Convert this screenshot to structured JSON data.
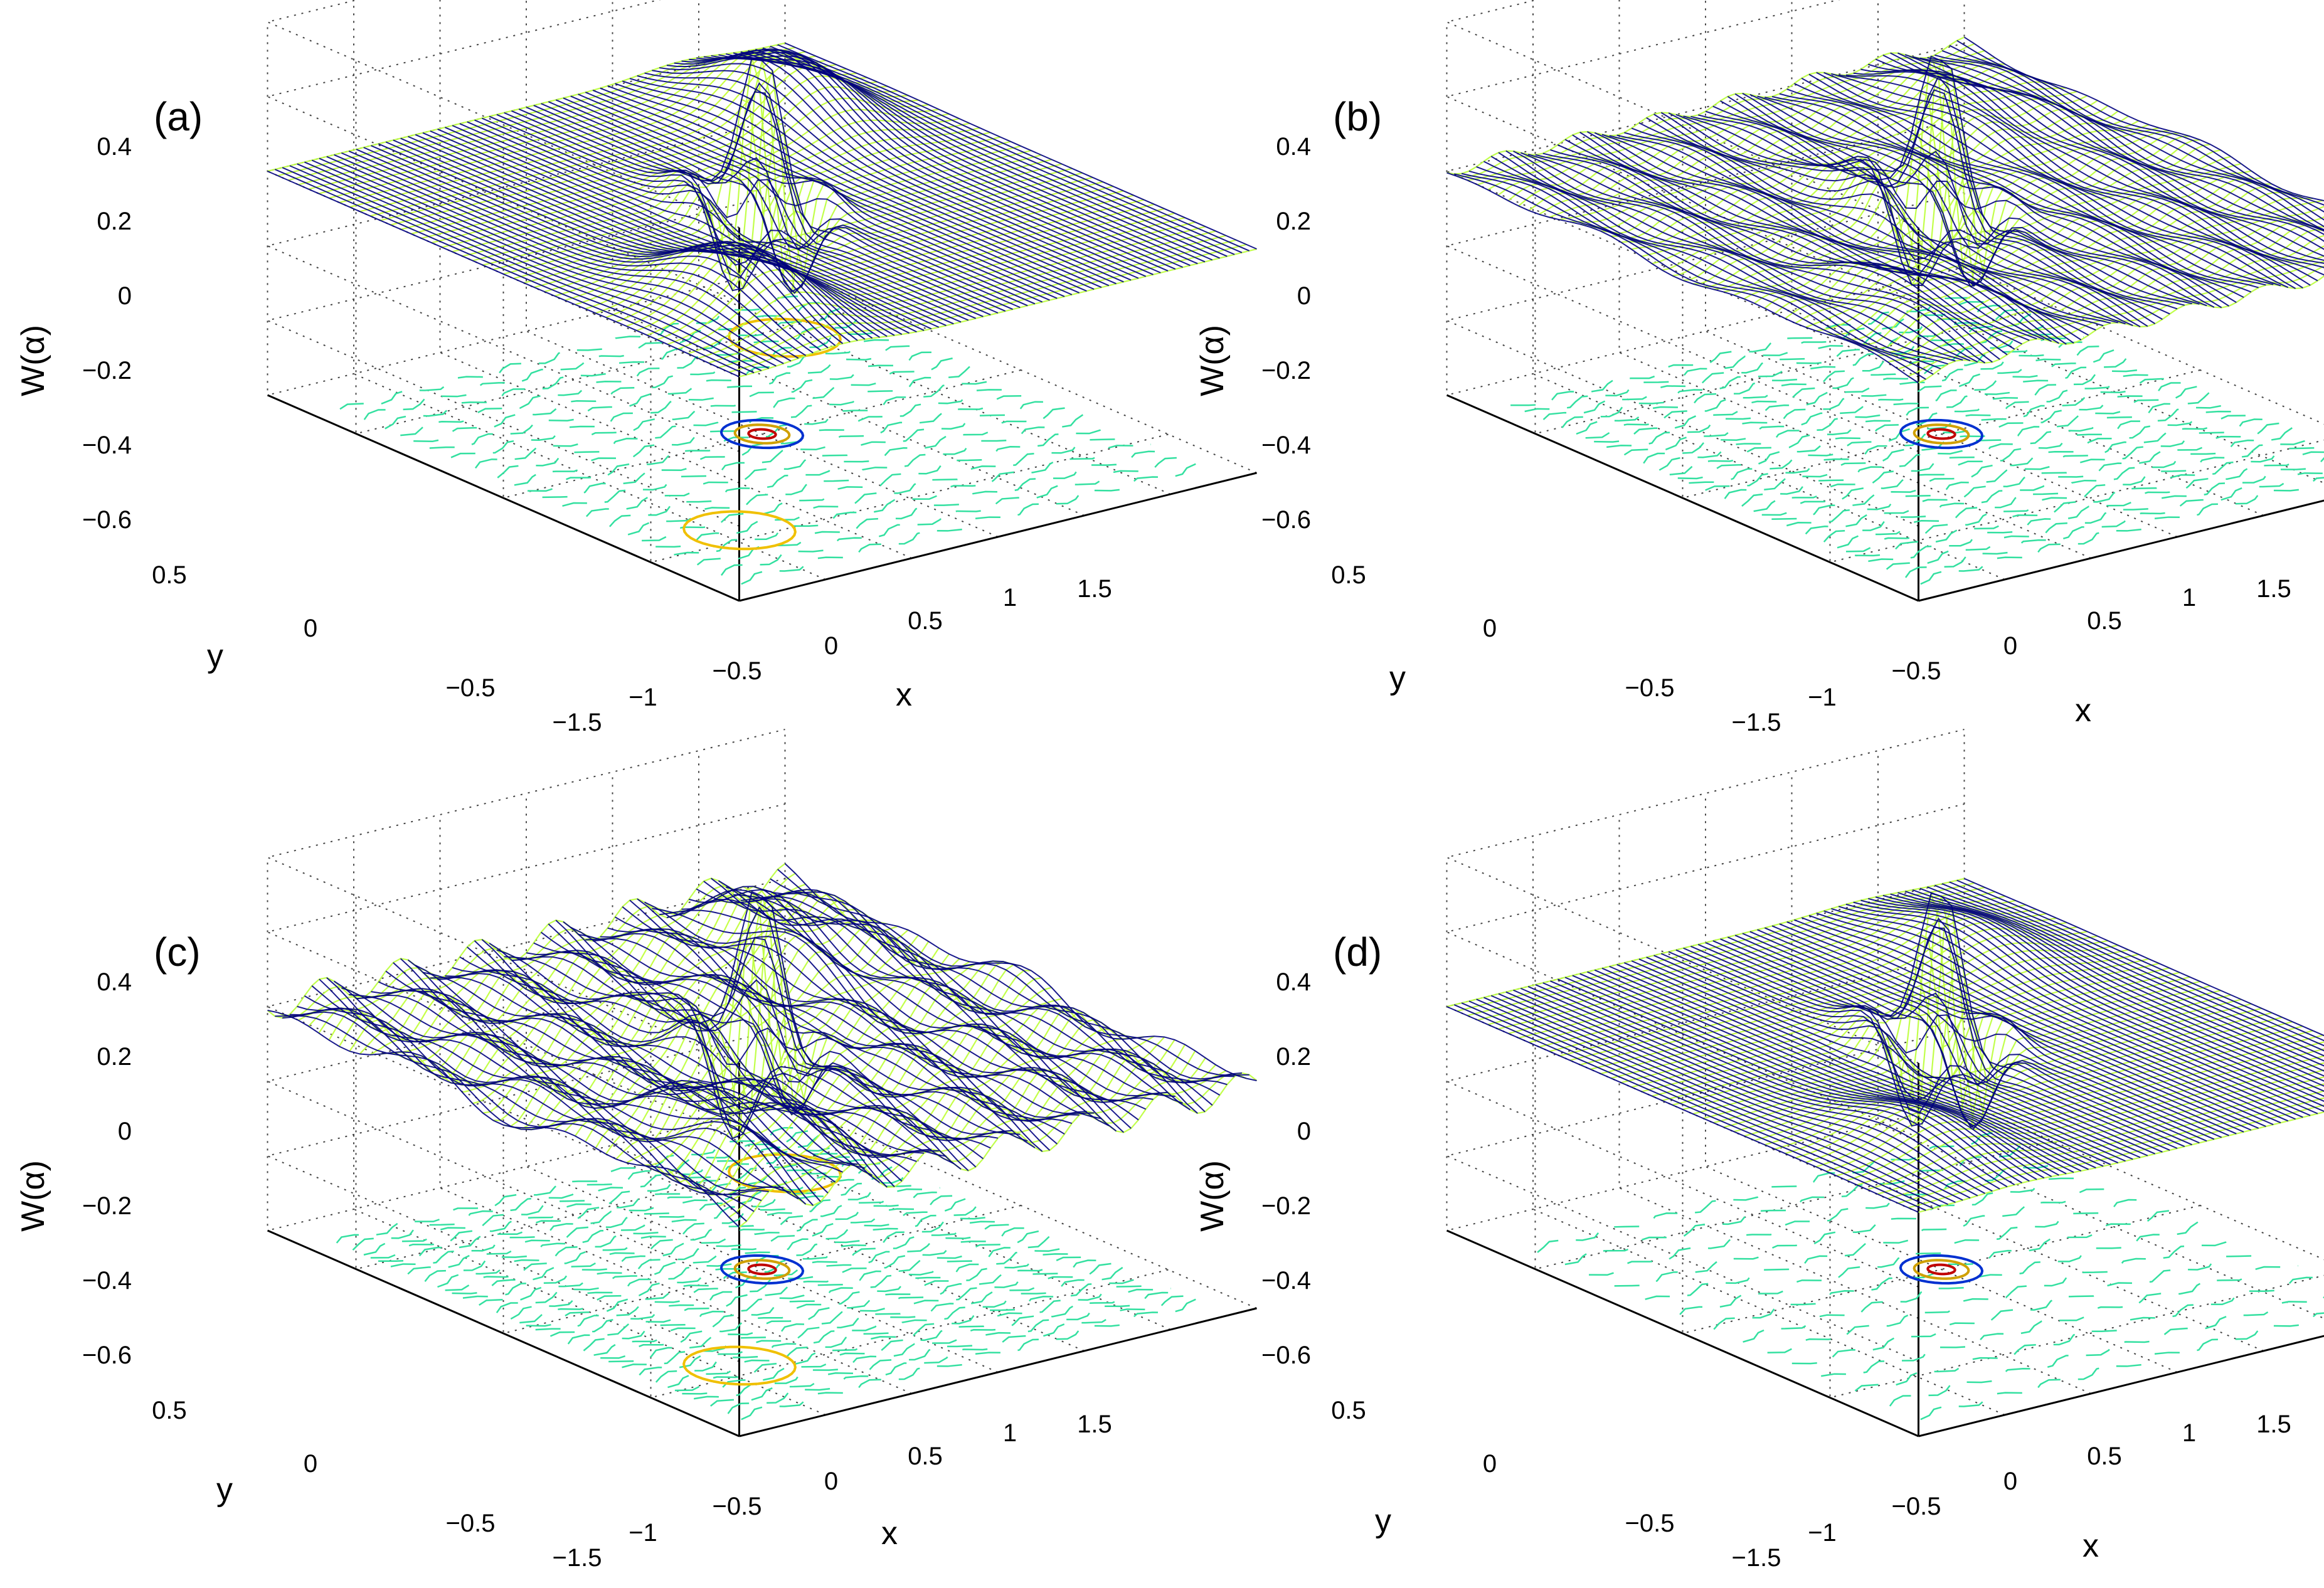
{
  "chart_data": [
    {
      "type": "surface",
      "panel_label": "(a)",
      "zlabel": "W(α)",
      "xlabel": "x",
      "ylabel": "y",
      "zticks": [
        "0.4",
        "0.2",
        "0",
        "−0.2",
        "−0.4",
        "−0.6"
      ],
      "xticks": [
        "−1.5",
        "−1",
        "−0.5",
        "0",
        "0.5",
        "1",
        "1.5"
      ],
      "yticks": [
        "0.5",
        "0",
        "−0.5"
      ],
      "zlim": [
        -0.6,
        0.4
      ],
      "xlim": [
        -1.5,
        1.5
      ],
      "ylim": [
        -0.8,
        0.8
      ],
      "features": {
        "side_peaks": 0.16,
        "central_peaks": [
          0.43,
          0.35,
          0.28,
          0.2
        ],
        "central_dip": -0.55,
        "ripple": 0.0
      },
      "contours": {
        "side_rings": true,
        "ripple_lines": 22
      }
    },
    {
      "type": "surface",
      "panel_label": "(b)",
      "zlabel": "W(α)",
      "xlabel": "x",
      "ylabel": "y",
      "zticks": [
        "0.4",
        "0.2",
        "0",
        "−0.2",
        "−0.4",
        "−0.6"
      ],
      "xticks": [
        "−1.5",
        "−1",
        "−0.5",
        "0",
        "0.5",
        "1",
        "1.5"
      ],
      "yticks": [
        "0.5",
        "0",
        "−0.5"
      ],
      "zlim": [
        -0.6,
        0.4
      ],
      "xlim": [
        -1.5,
        1.5
      ],
      "ylim": [
        -0.8,
        0.8
      ],
      "features": {
        "side_peaks": 0.07,
        "central_peaks": [
          0.43,
          0.35,
          0.32,
          0.28,
          0.25,
          0.22
        ],
        "central_dip": -0.52,
        "ripple": 0.02
      },
      "contours": {
        "side_rings": false,
        "ripple_lines": 30
      }
    },
    {
      "type": "surface",
      "panel_label": "(c)",
      "zlabel": "W(α)",
      "xlabel": "x",
      "ylabel": "y",
      "zticks": [
        "0.4",
        "0.2",
        "0",
        "−0.2",
        "−0.4",
        "−0.6"
      ],
      "xticks": [
        "−1.5",
        "−1",
        "−0.5",
        "0",
        "0.5",
        "1",
        "1.5"
      ],
      "yticks": [
        "0.5",
        "0",
        "−0.5"
      ],
      "zlim": [
        -0.6,
        0.4
      ],
      "xlim": [
        -1.5,
        1.5
      ],
      "ylim": [
        -0.8,
        0.8
      ],
      "features": {
        "side_peaks": 0.1,
        "central_peaks": [
          0.43,
          0.32,
          0.25,
          0.18
        ],
        "central_dip": -0.6,
        "ripple": 0.05
      },
      "contours": {
        "side_rings": true,
        "ripple_lines": 34
      }
    },
    {
      "type": "surface",
      "panel_label": "(d)",
      "zlabel": "W(α)",
      "xlabel": "x",
      "ylabel": "y",
      "zticks": [
        "0.4",
        "0.2",
        "0",
        "−0.2",
        "−0.4",
        "−0.6"
      ],
      "xticks": [
        "−1.5",
        "−1",
        "−0.5",
        "0",
        "0.5",
        "1",
        "1.5"
      ],
      "yticks": [
        "0.5",
        "0",
        "−0.5"
      ],
      "zlim": [
        -0.6,
        0.4
      ],
      "xlim": [
        -1.5,
        1.5
      ],
      "ylim": [
        -0.8,
        0.8
      ],
      "features": {
        "side_peaks": 0.08,
        "central_peaks": [
          0.43,
          0.26,
          0.2,
          0.15
        ],
        "central_dip": -0.48,
        "ripple": 0.0
      },
      "contours": {
        "side_rings": false,
        "ripple_lines": 14
      }
    }
  ],
  "colors": {
    "grid": "#444444",
    "axis": "#000000",
    "jet_low": "#0000b0",
    "jet_mid": "#00e0c0",
    "jet_high": "#b00000"
  }
}
